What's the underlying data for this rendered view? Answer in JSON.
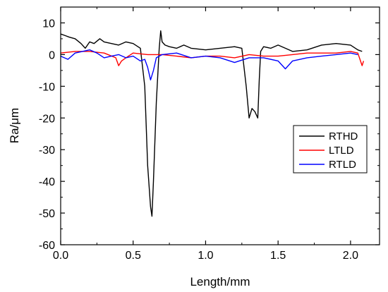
{
  "chart_data": {
    "type": "line",
    "xlabel": "Length/mm",
    "ylabel": "Ra/μm",
    "xlim": [
      0.0,
      2.2
    ],
    "ylim": [
      -60,
      15
    ],
    "xticks": [
      0.0,
      0.5,
      1.0,
      1.5,
      2.0
    ],
    "xtick_labels": [
      "0.0",
      "0.5",
      "1.0",
      "1.5",
      "2.0"
    ],
    "yticks": [
      10,
      0,
      -10,
      -20,
      -30,
      -40,
      -50,
      -60
    ],
    "ytick_labels": [
      "10",
      "0",
      "-10",
      "-20",
      "-30",
      "-40",
      "-50",
      "-60"
    ],
    "grid": false,
    "legend_position": "right",
    "series": [
      {
        "name": "RTHD",
        "color": "#000000",
        "x": [
          0.0,
          0.03,
          0.06,
          0.1,
          0.14,
          0.17,
          0.2,
          0.23,
          0.27,
          0.3,
          0.35,
          0.4,
          0.45,
          0.5,
          0.55,
          0.58,
          0.6,
          0.62,
          0.63,
          0.64,
          0.66,
          0.68,
          0.69,
          0.7,
          0.72,
          0.75,
          0.8,
          0.85,
          0.9,
          1.0,
          1.1,
          1.2,
          1.25,
          1.28,
          1.3,
          1.32,
          1.34,
          1.36,
          1.37,
          1.38,
          1.4,
          1.45,
          1.5,
          1.55,
          1.6,
          1.7,
          1.8,
          1.9,
          2.0,
          2.05,
          2.08
        ],
        "values": [
          6.5,
          6.0,
          5.5,
          5.0,
          3.5,
          2.0,
          4.0,
          3.5,
          5.0,
          4.0,
          3.5,
          3.0,
          4.0,
          3.5,
          2.0,
          -10,
          -35,
          -48,
          -51,
          -40,
          -15,
          2.0,
          7.5,
          4.0,
          3.0,
          2.5,
          2.0,
          3.0,
          2.0,
          1.5,
          2.0,
          2.5,
          2.0,
          -10,
          -20,
          -17,
          -18,
          -20,
          -8,
          1.0,
          2.5,
          2.0,
          3.0,
          2.0,
          1.0,
          1.5,
          3.0,
          3.5,
          3.0,
          1.5,
          1.0
        ]
      },
      {
        "name": "LTLD",
        "color": "#ff0000",
        "x": [
          0.0,
          0.1,
          0.2,
          0.3,
          0.38,
          0.4,
          0.42,
          0.45,
          0.5,
          0.6,
          0.7,
          0.8,
          0.9,
          1.0,
          1.1,
          1.2,
          1.3,
          1.4,
          1.5,
          1.6,
          1.7,
          1.8,
          1.9,
          2.0,
          2.05,
          2.08,
          2.09
        ],
        "values": [
          0.5,
          1.0,
          1.0,
          0.5,
          -1.0,
          -3.5,
          -2.0,
          -1.0,
          0.5,
          0.0,
          0.0,
          -0.5,
          -1.0,
          -0.5,
          -0.5,
          -1.0,
          0.0,
          -0.5,
          -0.5,
          0.0,
          0.5,
          0.5,
          0.5,
          1.0,
          0.5,
          -3.5,
          -2.0
        ]
      },
      {
        "name": "RTLD",
        "color": "#0000ff",
        "x": [
          0.0,
          0.05,
          0.1,
          0.15,
          0.2,
          0.25,
          0.3,
          0.35,
          0.4,
          0.45,
          0.5,
          0.55,
          0.58,
          0.6,
          0.62,
          0.64,
          0.66,
          0.7,
          0.8,
          0.9,
          1.0,
          1.1,
          1.2,
          1.3,
          1.4,
          1.5,
          1.55,
          1.58,
          1.6,
          1.7,
          1.8,
          1.9,
          2.0,
          2.05
        ],
        "values": [
          -0.5,
          -1.5,
          0.5,
          1.0,
          1.5,
          0.5,
          -1.0,
          -0.5,
          0.0,
          -1.0,
          -0.5,
          -2.0,
          -1.5,
          -4.0,
          -8.0,
          -5.0,
          -1.0,
          0.0,
          0.5,
          -1.0,
          -0.5,
          -1.0,
          -2.5,
          -1.0,
          -1.0,
          -2.0,
          -4.5,
          -3.0,
          -2.0,
          -1.0,
          -0.5,
          0.0,
          0.5,
          0.0
        ]
      }
    ]
  }
}
